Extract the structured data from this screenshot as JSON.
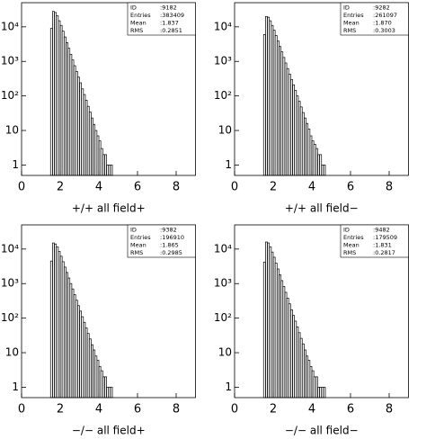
{
  "chart_data": [
    {
      "type": "histogram",
      "title": "+/+ all field+",
      "log_y": true,
      "color": "#000000",
      "stats": {
        "labels": [
          "ID",
          "Entries",
          "Mean",
          "RMS"
        ],
        "values": [
          ":9182",
          ":383409",
          ":1.837",
          ":0.2851"
        ]
      },
      "bins": [
        1.5,
        1.6,
        1.7,
        1.8,
        1.9,
        2.0,
        2.1,
        2.2,
        2.3,
        2.4,
        2.5,
        2.6,
        2.7,
        2.8,
        2.9,
        3.0,
        3.1,
        3.2,
        3.3,
        3.4,
        3.5,
        3.6,
        3.7,
        3.8,
        3.9,
        4.0,
        4.1,
        4.2,
        4.3,
        4.4,
        4.5,
        4.6,
        4.7
      ],
      "values": [
        9000,
        28000,
        26000,
        21000,
        15000,
        11000,
        7500,
        5100,
        3500,
        2400,
        1600,
        1100,
        750,
        510,
        350,
        240,
        160,
        110,
        75,
        50,
        34,
        23,
        15,
        10,
        7,
        5,
        3,
        2,
        2,
        1,
        1,
        1
      ],
      "xlim": [
        0,
        9
      ],
      "xticks": [
        0,
        2,
        4,
        6,
        8
      ],
      "ylim": [
        0.5,
        50000
      ],
      "yticks": [
        1,
        10,
        {
          "value": 100,
          "label": "10²"
        },
        {
          "value": 1000,
          "label": "10³"
        },
        {
          "value": 10000,
          "label": "10⁴"
        }
      ]
    },
    {
      "type": "histogram",
      "title": "+/+ all field−",
      "log_y": true,
      "color": "#000000",
      "stats": {
        "labels": [
          "ID",
          "Entries",
          "Mean",
          "RMS"
        ],
        "values": [
          ":9282",
          ":261097",
          ":1.870",
          ":0.3003"
        ]
      },
      "bins": [
        1.5,
        1.6,
        1.7,
        1.8,
        1.9,
        2.0,
        2.1,
        2.2,
        2.3,
        2.4,
        2.5,
        2.6,
        2.7,
        2.8,
        2.9,
        3.0,
        3.1,
        3.2,
        3.3,
        3.4,
        3.5,
        3.6,
        3.7,
        3.8,
        3.9,
        4.0,
        4.1,
        4.2,
        4.3,
        4.4,
        4.5,
        4.6,
        4.7
      ],
      "values": [
        6000,
        20000,
        19000,
        15000,
        11000,
        8000,
        5600,
        3900,
        2700,
        1900,
        1300,
        900,
        620,
        430,
        300,
        210,
        145,
        100,
        70,
        48,
        33,
        23,
        16,
        11,
        7,
        5,
        4,
        3,
        2,
        2,
        1,
        1
      ],
      "xlim": [
        0,
        9
      ],
      "xticks": [
        0,
        2,
        4,
        6,
        8
      ],
      "ylim": [
        0.5,
        50000
      ],
      "yticks": [
        1,
        10,
        {
          "value": 100,
          "label": "10²"
        },
        {
          "value": 1000,
          "label": "10³"
        },
        {
          "value": 10000,
          "label": "10⁴"
        }
      ]
    },
    {
      "type": "histogram",
      "title": "−/− all field+",
      "log_y": true,
      "color": "#000000",
      "stats": {
        "labels": [
          "ID",
          "Entries",
          "Mean",
          "RMS"
        ],
        "values": [
          ":9382",
          ":196910",
          ":1.865",
          ":0.2985"
        ]
      },
      "bins": [
        1.5,
        1.6,
        1.7,
        1.8,
        1.9,
        2.0,
        2.1,
        2.2,
        2.3,
        2.4,
        2.5,
        2.6,
        2.7,
        2.8,
        2.9,
        3.0,
        3.1,
        3.2,
        3.3,
        3.4,
        3.5,
        3.6,
        3.7,
        3.8,
        3.9,
        4.0,
        4.1,
        4.2,
        4.3,
        4.4,
        4.5,
        4.6,
        4.7
      ],
      "values": [
        4500,
        15000,
        14000,
        11500,
        8500,
        6200,
        4300,
        3000,
        2100,
        1450,
        1000,
        700,
        480,
        330,
        230,
        160,
        110,
        76,
        52,
        36,
        25,
        17,
        12,
        8,
        6,
        4,
        3,
        2,
        2,
        1,
        1,
        1
      ],
      "xlim": [
        0,
        9
      ],
      "xticks": [
        0,
        2,
        4,
        6,
        8
      ],
      "ylim": [
        0.5,
        50000
      ],
      "yticks": [
        1,
        10,
        {
          "value": 100,
          "label": "10²"
        },
        {
          "value": 1000,
          "label": "10³"
        },
        {
          "value": 10000,
          "label": "10⁴"
        }
      ]
    },
    {
      "type": "histogram",
      "title": "−/− all field−",
      "log_y": true,
      "color": "#000000",
      "stats": {
        "labels": [
          "ID",
          "Entries",
          "Mean",
          "RMS"
        ],
        "values": [
          ":9482",
          ":179509",
          ":1.831",
          ":0.2817"
        ]
      },
      "bins": [
        1.5,
        1.6,
        1.7,
        1.8,
        1.9,
        2.0,
        2.1,
        2.2,
        2.3,
        2.4,
        2.5,
        2.6,
        2.7,
        2.8,
        2.9,
        3.0,
        3.1,
        3.2,
        3.3,
        3.4,
        3.5,
        3.6,
        3.7,
        3.8,
        3.9,
        4.0,
        4.1,
        4.2,
        4.3,
        4.4,
        4.5,
        4.6,
        4.7
      ],
      "values": [
        4200,
        16000,
        15000,
        11500,
        8200,
        5800,
        3900,
        2650,
        1800,
        1220,
        830,
        560,
        380,
        260,
        175,
        120,
        82,
        56,
        38,
        26,
        18,
        12,
        8,
        6,
        4,
        3,
        2,
        2,
        1,
        1,
        1,
        1
      ],
      "xlim": [
        0,
        9
      ],
      "xticks": [
        0,
        2,
        4,
        6,
        8
      ],
      "ylim": [
        0.5,
        50000
      ],
      "yticks": [
        1,
        10,
        {
          "value": 100,
          "label": "10²"
        },
        {
          "value": 1000,
          "label": "10³"
        },
        {
          "value": 10000,
          "label": "10⁴"
        }
      ]
    }
  ]
}
